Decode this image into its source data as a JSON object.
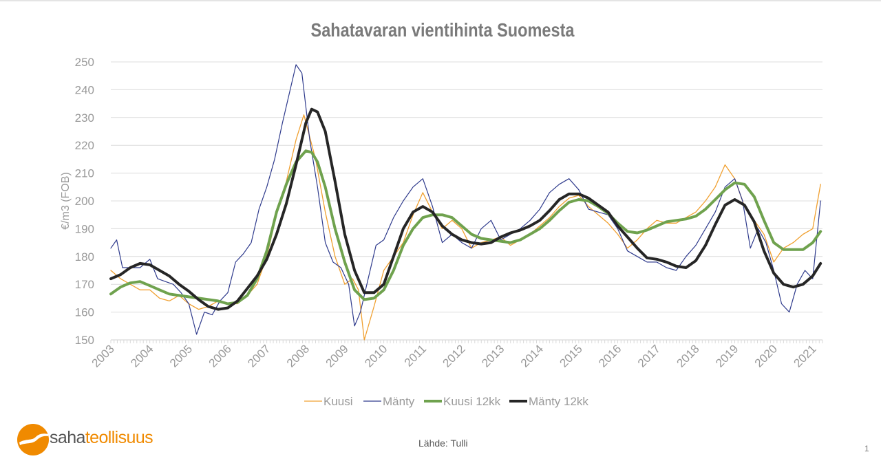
{
  "page": {
    "title": "Sahatavaran vientihinta Suomesta",
    "source": "Lähde: Tulli",
    "page_number": "1",
    "logo": {
      "part1": "saha",
      "part2": "teollisuus"
    }
  },
  "colors": {
    "kuusi": "#f0a030",
    "manty": "#2e3a8c",
    "kuusi_12kk": "#6fa24e",
    "manty_12kk": "#262626",
    "grid": "#dcdcdc",
    "axis_text": "#9a9a9a",
    "brand_orange": "#f08a00"
  },
  "chart_data": {
    "type": "line",
    "title": "Sahatavaran vientihinta Suomesta",
    "xlabel": "",
    "ylabel": "€/m3 (FOB)",
    "ylim": [
      150,
      250
    ],
    "yticks": [
      150,
      160,
      170,
      180,
      190,
      200,
      210,
      220,
      230,
      240,
      250
    ],
    "xlim": [
      2003.0,
      2021.25
    ],
    "xticks": [
      "2003",
      "2004",
      "2005",
      "2006",
      "2007",
      "2008",
      "2009",
      "2010",
      "2011",
      "2012",
      "2013",
      "2014",
      "2015",
      "2016",
      "2017",
      "2018",
      "2019",
      "2020",
      "2021"
    ],
    "grid": true,
    "legend_position": "bottom",
    "series": [
      {
        "name": "Kuusi",
        "x": [
          2003.0,
          2003.25,
          2003.5,
          2003.75,
          2004.0,
          2004.25,
          2004.5,
          2004.75,
          2005.0,
          2005.25,
          2005.5,
          2005.75,
          2006.0,
          2006.25,
          2006.5,
          2006.75,
          2007.0,
          2007.25,
          2007.5,
          2007.75,
          2007.95,
          2008.25,
          2008.5,
          2008.75,
          2009.0,
          2009.2,
          2009.35,
          2009.5,
          2009.75,
          2010.0,
          2010.25,
          2010.5,
          2010.75,
          2011.0,
          2011.25,
          2011.5,
          2011.75,
          2012.0,
          2012.25,
          2012.5,
          2012.75,
          2013.0,
          2013.25,
          2013.5,
          2013.75,
          2014.0,
          2014.25,
          2014.5,
          2014.75,
          2015.0,
          2015.25,
          2015.5,
          2015.75,
          2016.0,
          2016.25,
          2016.5,
          2016.75,
          2017.0,
          2017.25,
          2017.5,
          2017.75,
          2018.0,
          2018.25,
          2018.5,
          2018.75,
          2019.0,
          2019.25,
          2019.5,
          2019.75,
          2020.0,
          2020.25,
          2020.5,
          2020.75,
          2021.0,
          2021.2
        ],
        "values": [
          175,
          172,
          170,
          168,
          168,
          165,
          164,
          166,
          163,
          161,
          162,
          164,
          163,
          163,
          166,
          170,
          180,
          195,
          207,
          222,
          231,
          215,
          196,
          180,
          170,
          172,
          168,
          150,
          162,
          175,
          180,
          185,
          195,
          203,
          196,
          190,
          193,
          190,
          183,
          185,
          186,
          187,
          184,
          186,
          188,
          191,
          194,
          198,
          201,
          202,
          198,
          195,
          192,
          188,
          183,
          186,
          190,
          193,
          192,
          192,
          194,
          196,
          200,
          205,
          213,
          208,
          198,
          193,
          188,
          178,
          183,
          185,
          188,
          190,
          206
        ]
      },
      {
        "name": "Mänty",
        "x": [
          2003.0,
          2003.15,
          2003.3,
          2003.5,
          2003.75,
          2004.0,
          2004.2,
          2004.4,
          2004.6,
          2004.8,
          2005.0,
          2005.2,
          2005.4,
          2005.6,
          2005.8,
          2006.0,
          2006.2,
          2006.4,
          2006.6,
          2006.8,
          2007.0,
          2007.2,
          2007.4,
          2007.6,
          2007.75,
          2007.9,
          2008.1,
          2008.3,
          2008.5,
          2008.7,
          2008.9,
          2009.1,
          2009.25,
          2009.4,
          2009.6,
          2009.8,
          2010.0,
          2010.25,
          2010.5,
          2010.75,
          2011.0,
          2011.25,
          2011.5,
          2011.75,
          2012.0,
          2012.25,
          2012.5,
          2012.75,
          2013.0,
          2013.25,
          2013.5,
          2013.75,
          2014.0,
          2014.25,
          2014.5,
          2014.75,
          2015.0,
          2015.25,
          2015.5,
          2015.75,
          2016.0,
          2016.25,
          2016.5,
          2016.75,
          2017.0,
          2017.25,
          2017.5,
          2017.75,
          2018.0,
          2018.25,
          2018.5,
          2018.75,
          2019.0,
          2019.2,
          2019.4,
          2019.6,
          2019.8,
          2020.0,
          2020.2,
          2020.4,
          2020.6,
          2020.8,
          2021.0,
          2021.2
        ],
        "values": [
          183,
          186,
          176,
          176,
          176,
          179,
          172,
          171,
          170,
          167,
          163,
          152,
          160,
          159,
          164,
          167,
          178,
          181,
          185,
          197,
          205,
          215,
          228,
          240,
          249,
          246,
          222,
          205,
          185,
          178,
          176,
          170,
          155,
          160,
          172,
          184,
          186,
          194,
          200,
          205,
          208,
          198,
          185,
          188,
          185,
          183,
          190,
          193,
          186,
          188,
          190,
          193,
          197,
          203,
          206,
          208,
          204,
          197,
          196,
          195,
          190,
          182,
          180,
          178,
          178,
          176,
          175,
          180,
          184,
          190,
          196,
          205,
          208,
          200,
          183,
          190,
          185,
          175,
          163,
          160,
          170,
          175,
          172,
          200
        ]
      },
      {
        "name": "Kuusi 12kk",
        "x": [
          2003.0,
          2003.25,
          2003.5,
          2003.75,
          2004.0,
          2004.25,
          2004.5,
          2004.75,
          2005.0,
          2005.25,
          2005.5,
          2005.75,
          2006.0,
          2006.25,
          2006.5,
          2006.75,
          2007.0,
          2007.25,
          2007.5,
          2007.75,
          2008.0,
          2008.15,
          2008.3,
          2008.5,
          2008.75,
          2009.0,
          2009.25,
          2009.5,
          2009.75,
          2010.0,
          2010.25,
          2010.5,
          2010.75,
          2011.0,
          2011.25,
          2011.5,
          2011.75,
          2012.0,
          2012.25,
          2012.5,
          2012.75,
          2013.0,
          2013.25,
          2013.5,
          2013.75,
          2014.0,
          2014.25,
          2014.5,
          2014.75,
          2015.0,
          2015.25,
          2015.5,
          2015.75,
          2016.0,
          2016.25,
          2016.5,
          2016.75,
          2017.0,
          2017.25,
          2017.5,
          2017.75,
          2018.0,
          2018.25,
          2018.5,
          2018.75,
          2019.0,
          2019.25,
          2019.5,
          2019.75,
          2020.0,
          2020.25,
          2020.5,
          2020.75,
          2021.0,
          2021.2
        ],
        "values": [
          166.5,
          169,
          170.5,
          171,
          169.5,
          168,
          166.5,
          166,
          165.5,
          165,
          164.5,
          164,
          163,
          163.5,
          166,
          172,
          182,
          196,
          206,
          214,
          218,
          217.5,
          214,
          205,
          190,
          178,
          168,
          164.5,
          165,
          168,
          175,
          184,
          190,
          194,
          195,
          195,
          194,
          191,
          188,
          186.5,
          186,
          185.5,
          185,
          186,
          188,
          190,
          193,
          196.5,
          199.5,
          200.5,
          200,
          198,
          195.5,
          192,
          189,
          188.5,
          189.5,
          191,
          192.5,
          193,
          193.5,
          194.5,
          197,
          200.5,
          204,
          206.5,
          206,
          201.5,
          193,
          185,
          182.5,
          182.5,
          182.5,
          185,
          189
        ]
      },
      {
        "name": "Mänty 12kk",
        "x": [
          2003.0,
          2003.25,
          2003.5,
          2003.75,
          2004.0,
          2004.25,
          2004.5,
          2004.75,
          2005.0,
          2005.25,
          2005.5,
          2005.75,
          2006.0,
          2006.25,
          2006.5,
          2006.75,
          2007.0,
          2007.25,
          2007.5,
          2007.75,
          2008.0,
          2008.15,
          2008.3,
          2008.5,
          2008.75,
          2009.0,
          2009.25,
          2009.5,
          2009.75,
          2010.0,
          2010.25,
          2010.5,
          2010.75,
          2011.0,
          2011.25,
          2011.5,
          2011.75,
          2012.0,
          2012.25,
          2012.5,
          2012.75,
          2013.0,
          2013.25,
          2013.5,
          2013.75,
          2014.0,
          2014.25,
          2014.5,
          2014.75,
          2015.0,
          2015.25,
          2015.5,
          2015.75,
          2016.0,
          2016.25,
          2016.5,
          2016.75,
          2017.0,
          2017.25,
          2017.5,
          2017.75,
          2018.0,
          2018.25,
          2018.5,
          2018.75,
          2019.0,
          2019.25,
          2019.5,
          2019.75,
          2020.0,
          2020.25,
          2020.5,
          2020.75,
          2021.0,
          2021.2
        ],
        "values": [
          172,
          173.5,
          176,
          177.5,
          177,
          175,
          173,
          170,
          167.5,
          164.5,
          162,
          161,
          161.5,
          164,
          168.5,
          173,
          179,
          188,
          199,
          213,
          228,
          233,
          232,
          225,
          207,
          188,
          175,
          167,
          167,
          170,
          180,
          190,
          196,
          198,
          196,
          191,
          188,
          186,
          185,
          184.5,
          185,
          187,
          188.5,
          189.5,
          191,
          193,
          196.5,
          200.5,
          202.5,
          202.5,
          201,
          198.5,
          196,
          191,
          187,
          183,
          179.5,
          179,
          178,
          176.5,
          176,
          178.5,
          184,
          191.5,
          198.5,
          200.5,
          198.5,
          192.5,
          182,
          174,
          170,
          169,
          170,
          173,
          177.5
        ]
      }
    ]
  }
}
